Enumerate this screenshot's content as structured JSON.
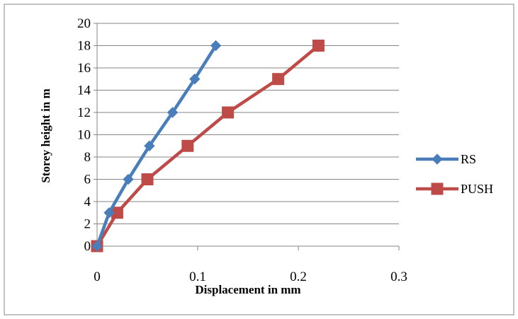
{
  "chart_data": {
    "type": "line",
    "title": "",
    "xlabel": "Displacement in mm",
    "ylabel": "Storey height in m",
    "xlim": [
      0,
      0.3
    ],
    "ylim": [
      0,
      20
    ],
    "x_ticks": [
      0,
      0.1,
      0.2,
      0.3
    ],
    "x_tick_labels": [
      "0",
      "0.1",
      "0.2",
      "0.3"
    ],
    "y_ticks": [
      0,
      2,
      4,
      6,
      8,
      10,
      12,
      14,
      16,
      18,
      20
    ],
    "y_tick_labels": [
      "0",
      "2",
      "4",
      "6",
      "8",
      "10",
      "12",
      "14",
      "16",
      "18",
      "20"
    ],
    "grid": "horizontal",
    "legend_position": "right",
    "series": [
      {
        "name": "RS",
        "color": "#4a7ebb",
        "marker": "diamond",
        "x": [
          0,
          0.012,
          0.031,
          0.052,
          0.075,
          0.097,
          0.118
        ],
        "y": [
          0,
          3,
          6,
          9,
          12,
          15,
          18
        ]
      },
      {
        "name": "PUSH",
        "color": "#be4b48",
        "marker": "square",
        "x": [
          0,
          0.02,
          0.05,
          0.09,
          0.13,
          0.18,
          0.22
        ],
        "y": [
          0,
          3,
          6,
          9,
          12,
          15,
          18
        ]
      }
    ]
  }
}
